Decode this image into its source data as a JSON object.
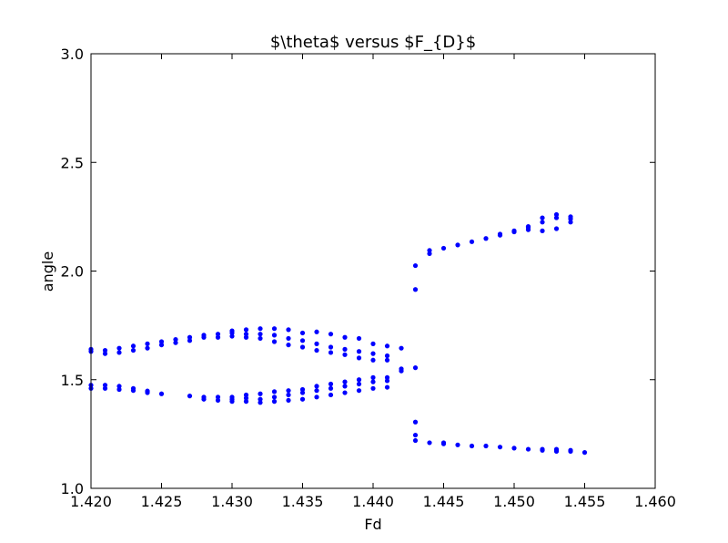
{
  "chart_data": {
    "type": "scatter",
    "title": "$\\theta$ versus $F_{D}$",
    "xlabel": "Fd",
    "ylabel": "angle",
    "xlim": [
      1.42,
      1.46
    ],
    "ylim": [
      1.0,
      3.0
    ],
    "xticks": [
      1.42,
      1.425,
      1.43,
      1.435,
      1.44,
      1.445,
      1.45,
      1.455,
      1.46
    ],
    "xtick_labels": [
      "1.420",
      "1.425",
      "1.430",
      "1.435",
      "1.440",
      "1.445",
      "1.450",
      "1.455",
      "1.460"
    ],
    "yticks": [
      1.0,
      1.5,
      2.0,
      2.5,
      3.0
    ],
    "ytick_labels": [
      "1.0",
      "1.5",
      "2.0",
      "2.5",
      "3.0"
    ],
    "grid": false,
    "marker_color": "#0000ff",
    "series": [
      {
        "points": [
          [
            1.42,
            1.63
          ],
          [
            1.42,
            1.64
          ],
          [
            1.42,
            1.46
          ],
          [
            1.42,
            1.475
          ],
          [
            1.421,
            1.62
          ],
          [
            1.421,
            1.635
          ],
          [
            1.421,
            1.46
          ],
          [
            1.421,
            1.475
          ],
          [
            1.422,
            1.625
          ],
          [
            1.422,
            1.645
          ],
          [
            1.422,
            1.455
          ],
          [
            1.422,
            1.47
          ],
          [
            1.423,
            1.635
          ],
          [
            1.423,
            1.655
          ],
          [
            1.423,
            1.45
          ],
          [
            1.423,
            1.46
          ],
          [
            1.424,
            1.645
          ],
          [
            1.424,
            1.665
          ],
          [
            1.424,
            1.44
          ],
          [
            1.424,
            1.448
          ],
          [
            1.425,
            1.66
          ],
          [
            1.425,
            1.675
          ],
          [
            1.425,
            1.435
          ],
          [
            1.426,
            1.67
          ],
          [
            1.426,
            1.685
          ],
          [
            1.427,
            1.68
          ],
          [
            1.427,
            1.695
          ],
          [
            1.427,
            1.425
          ],
          [
            1.428,
            1.695
          ],
          [
            1.428,
            1.705
          ],
          [
            1.428,
            1.41
          ],
          [
            1.428,
            1.42
          ],
          [
            1.429,
            1.695
          ],
          [
            1.429,
            1.71
          ],
          [
            1.429,
            1.405
          ],
          [
            1.429,
            1.42
          ],
          [
            1.43,
            1.7
          ],
          [
            1.43,
            1.715
          ],
          [
            1.43,
            1.725
          ],
          [
            1.43,
            1.4
          ],
          [
            1.43,
            1.41
          ],
          [
            1.43,
            1.42
          ],
          [
            1.431,
            1.695
          ],
          [
            1.431,
            1.71
          ],
          [
            1.431,
            1.73
          ],
          [
            1.431,
            1.4
          ],
          [
            1.431,
            1.415
          ],
          [
            1.431,
            1.43
          ],
          [
            1.432,
            1.69
          ],
          [
            1.432,
            1.71
          ],
          [
            1.432,
            1.735
          ],
          [
            1.432,
            1.395
          ],
          [
            1.432,
            1.41
          ],
          [
            1.432,
            1.435
          ],
          [
            1.433,
            1.675
          ],
          [
            1.433,
            1.705
          ],
          [
            1.433,
            1.735
          ],
          [
            1.433,
            1.4
          ],
          [
            1.433,
            1.42
          ],
          [
            1.433,
            1.445
          ],
          [
            1.434,
            1.66
          ],
          [
            1.434,
            1.69
          ],
          [
            1.434,
            1.73
          ],
          [
            1.434,
            1.405
          ],
          [
            1.434,
            1.43
          ],
          [
            1.434,
            1.45
          ],
          [
            1.435,
            1.65
          ],
          [
            1.435,
            1.68
          ],
          [
            1.435,
            1.715
          ],
          [
            1.435,
            1.41
          ],
          [
            1.435,
            1.44
          ],
          [
            1.435,
            1.455
          ],
          [
            1.436,
            1.635
          ],
          [
            1.436,
            1.665
          ],
          [
            1.436,
            1.72
          ],
          [
            1.436,
            1.42
          ],
          [
            1.436,
            1.45
          ],
          [
            1.436,
            1.47
          ],
          [
            1.437,
            1.625
          ],
          [
            1.437,
            1.65
          ],
          [
            1.437,
            1.71
          ],
          [
            1.437,
            1.43
          ],
          [
            1.437,
            1.46
          ],
          [
            1.437,
            1.48
          ],
          [
            1.438,
            1.615
          ],
          [
            1.438,
            1.64
          ],
          [
            1.438,
            1.695
          ],
          [
            1.438,
            1.44
          ],
          [
            1.438,
            1.47
          ],
          [
            1.438,
            1.49
          ],
          [
            1.439,
            1.6
          ],
          [
            1.439,
            1.63
          ],
          [
            1.439,
            1.69
          ],
          [
            1.439,
            1.45
          ],
          [
            1.439,
            1.48
          ],
          [
            1.439,
            1.5
          ],
          [
            1.44,
            1.59
          ],
          [
            1.44,
            1.62
          ],
          [
            1.44,
            1.665
          ],
          [
            1.44,
            1.46
          ],
          [
            1.44,
            1.49
          ],
          [
            1.44,
            1.51
          ],
          [
            1.441,
            1.59
          ],
          [
            1.441,
            1.61
          ],
          [
            1.441,
            1.655
          ],
          [
            1.441,
            1.465
          ],
          [
            1.441,
            1.495
          ],
          [
            1.441,
            1.51
          ],
          [
            1.442,
            1.645
          ],
          [
            1.442,
            1.54
          ],
          [
            1.442,
            1.55
          ],
          [
            1.443,
            2.025
          ],
          [
            1.443,
            1.915
          ],
          [
            1.443,
            1.555
          ],
          [
            1.443,
            1.305
          ],
          [
            1.443,
            1.245
          ],
          [
            1.443,
            1.22
          ],
          [
            1.444,
            2.095
          ],
          [
            1.444,
            2.08
          ],
          [
            1.444,
            1.21
          ],
          [
            1.445,
            2.105
          ],
          [
            1.445,
            1.205
          ],
          [
            1.445,
            1.21
          ],
          [
            1.446,
            2.12
          ],
          [
            1.446,
            1.2
          ],
          [
            1.447,
            2.135
          ],
          [
            1.447,
            1.195
          ],
          [
            1.448,
            2.15
          ],
          [
            1.448,
            1.195
          ],
          [
            1.449,
            2.17
          ],
          [
            1.449,
            2.165
          ],
          [
            1.449,
            1.19
          ],
          [
            1.45,
            2.18
          ],
          [
            1.45,
            2.185
          ],
          [
            1.45,
            1.185
          ],
          [
            1.451,
            2.19
          ],
          [
            1.451,
            2.2
          ],
          [
            1.451,
            2.205
          ],
          [
            1.451,
            1.18
          ],
          [
            1.452,
            2.185
          ],
          [
            1.452,
            2.225
          ],
          [
            1.452,
            2.245
          ],
          [
            1.452,
            1.175
          ],
          [
            1.452,
            1.18
          ],
          [
            1.453,
            2.195
          ],
          [
            1.453,
            2.245
          ],
          [
            1.453,
            2.26
          ],
          [
            1.453,
            1.17
          ],
          [
            1.453,
            1.175
          ],
          [
            1.453,
            1.18
          ],
          [
            1.454,
            2.225
          ],
          [
            1.454,
            2.24
          ],
          [
            1.454,
            2.25
          ],
          [
            1.454,
            1.17
          ],
          [
            1.454,
            1.175
          ],
          [
            1.455,
            1.165
          ]
        ]
      }
    ]
  }
}
